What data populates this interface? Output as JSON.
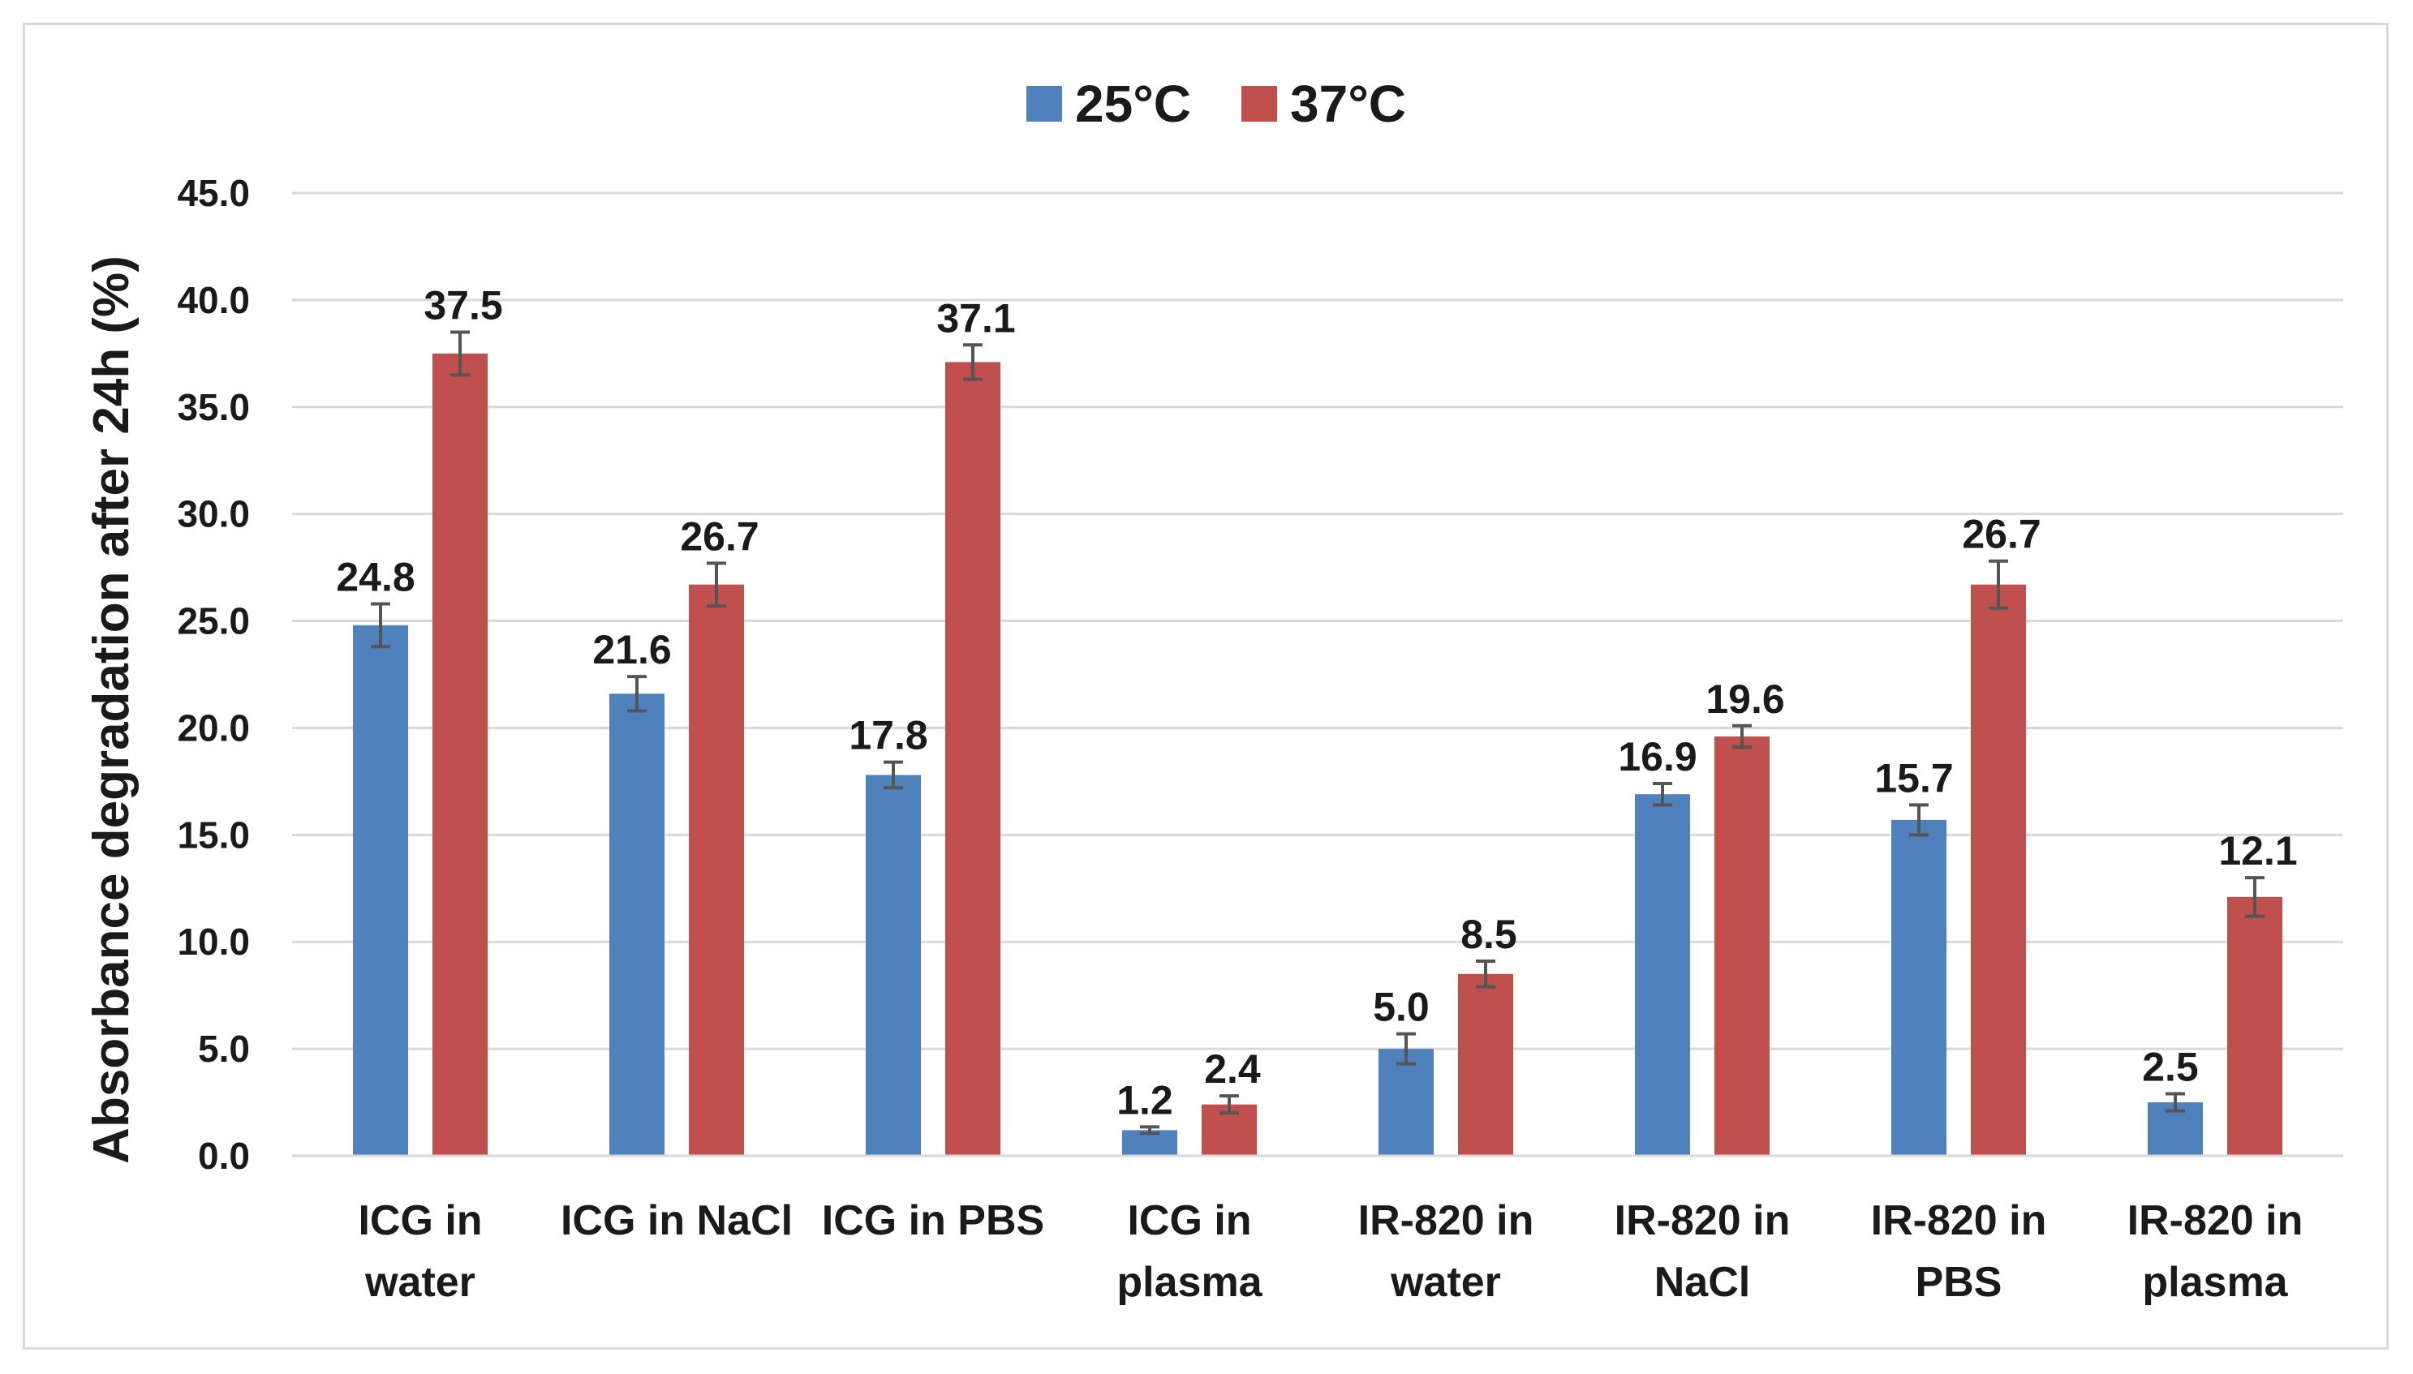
{
  "chart_data": {
    "type": "bar",
    "title": "",
    "xlabel": "",
    "ylabel": "Absorbance degradation after 24h (%)",
    "ylim": [
      0,
      45
    ],
    "yticks": [
      "0.0",
      "5.0",
      "10.0",
      "15.0",
      "20.0",
      "25.0",
      "30.0",
      "35.0",
      "40.0",
      "45.0"
    ],
    "ytick_values": [
      0,
      5,
      10,
      15,
      20,
      25,
      30,
      35,
      40,
      45
    ],
    "grid": true,
    "legend_position": "top-center",
    "categories": [
      [
        "ICG in",
        "water"
      ],
      [
        "ICG in NaCl"
      ],
      [
        "ICG in PBS"
      ],
      [
        "ICG in",
        "plasma"
      ],
      [
        "IR-820 in",
        "water"
      ],
      [
        "IR-820 in",
        "NaCl"
      ],
      [
        "IR-820 in",
        "PBS"
      ],
      [
        "IR-820 in",
        "plasma"
      ]
    ],
    "series": [
      {
        "name": "25°C",
        "color": "#4f81bd",
        "values": [
          24.8,
          21.6,
          17.8,
          1.2,
          5.0,
          16.9,
          15.7,
          2.5
        ],
        "labels": [
          "24.8",
          "21.6",
          "17.8",
          "1.2",
          "5.0",
          "16.9",
          "15.7",
          "2.5"
        ],
        "errors": [
          1.0,
          0.8,
          0.6,
          0.15,
          0.7,
          0.5,
          0.7,
          0.4
        ]
      },
      {
        "name": "37°C",
        "color": "#c0504d",
        "values": [
          37.5,
          26.7,
          37.1,
          2.4,
          8.5,
          19.6,
          26.7,
          12.1
        ],
        "labels": [
          "37.5",
          "26.7",
          "37.1",
          "2.4",
          "8.5",
          "19.6",
          "26.7",
          "12.1"
        ],
        "errors": [
          1.0,
          1.0,
          0.8,
          0.4,
          0.6,
          0.5,
          1.1,
          0.9
        ]
      }
    ]
  }
}
